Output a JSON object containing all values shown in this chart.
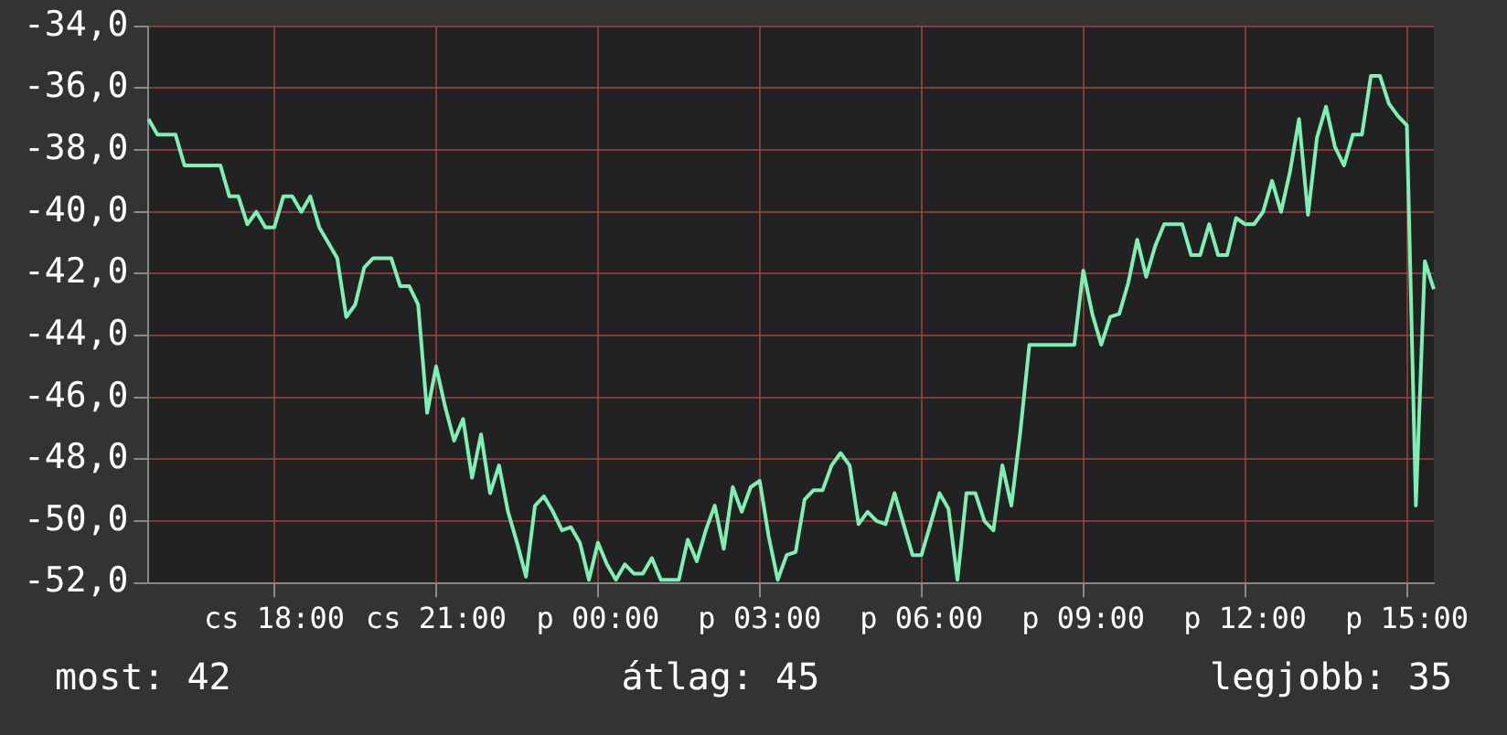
{
  "chart_data": {
    "type": "line",
    "categories": [
      null,
      null,
      null,
      null,
      null,
      null,
      null,
      null,
      null,
      null,
      null,
      null,
      null,
      null,
      "cs 18:00",
      null,
      null,
      null,
      null,
      null,
      null,
      null,
      null,
      null,
      null,
      null,
      null,
      null,
      null,
      null,
      null,
      null,
      "cs 21:00",
      null,
      null,
      null,
      null,
      null,
      null,
      null,
      null,
      null,
      null,
      null,
      null,
      null,
      null,
      null,
      null,
      null,
      "p 00:00",
      null,
      null,
      null,
      null,
      null,
      null,
      null,
      null,
      null,
      null,
      null,
      null,
      null,
      null,
      null,
      null,
      null,
      "p 03:00",
      null,
      null,
      null,
      null,
      null,
      null,
      null,
      null,
      null,
      null,
      null,
      null,
      null,
      null,
      null,
      null,
      null,
      "p 06:00",
      null,
      null,
      null,
      null,
      null,
      null,
      null,
      null,
      null,
      null,
      null,
      null,
      null,
      null,
      null,
      null,
      null,
      "p 09:00",
      null,
      null,
      null,
      null,
      null,
      null,
      null,
      null,
      null,
      null,
      null,
      null,
      null,
      null,
      null,
      null,
      null,
      "p 12:00",
      null,
      null,
      null,
      null,
      null,
      null,
      null,
      null,
      null,
      null,
      null,
      null,
      null,
      null,
      null,
      null,
      null,
      "p 15:00",
      null,
      null,
      null
    ],
    "series": [
      {
        "color": "#7ef0b4",
        "values": [
          -37.0,
          -37.5,
          -37.5,
          -37.5,
          -38.5,
          -38.5,
          -38.5,
          -38.5,
          -38.5,
          -39.5,
          -39.5,
          -40.4,
          -40.0,
          -40.5,
          -40.5,
          -39.5,
          -39.5,
          -40.0,
          -39.5,
          -40.5,
          -41.0,
          -41.5,
          -43.4,
          -43.0,
          -41.8,
          -41.5,
          -41.5,
          -41.5,
          -42.4,
          -42.4,
          -43.0,
          -46.5,
          -45.0,
          -46.3,
          -47.4,
          -46.7,
          -48.6,
          -47.2,
          -49.1,
          -48.2,
          -49.7,
          -50.7,
          -51.8,
          -49.5,
          -49.2,
          -49.7,
          -50.3,
          -50.2,
          -50.7,
          -51.9,
          -50.7,
          -51.4,
          -51.9,
          -51.4,
          -51.7,
          -51.7,
          -51.2,
          -51.9,
          -51.9,
          -51.9,
          -50.6,
          -51.3,
          -50.3,
          -49.5,
          -50.9,
          -48.9,
          -49.7,
          -48.9,
          -48.7,
          -50.5,
          -51.9,
          -51.1,
          -51.0,
          -49.3,
          -49.0,
          -49.0,
          -48.2,
          -47.8,
          -48.2,
          -50.1,
          -49.7,
          -50.0,
          -50.1,
          -49.1,
          -50.1,
          -51.1,
          -51.1,
          -50.1,
          -49.1,
          -49.6,
          -51.9,
          -49.1,
          -49.1,
          -50.0,
          -50.3,
          -48.2,
          -49.5,
          -47.1,
          -44.3,
          -44.3,
          -44.3,
          -44.3,
          -44.3,
          -44.3,
          -41.9,
          -43.3,
          -44.3,
          -43.4,
          -43.3,
          -42.3,
          -40.9,
          -42.1,
          -41.1,
          -40.4,
          -40.4,
          -40.4,
          -41.4,
          -41.4,
          -40.4,
          -41.4,
          -41.4,
          -40.2,
          -40.4,
          -40.4,
          -40.0,
          -39.0,
          -40.0,
          -38.7,
          -37.0,
          -40.1,
          -37.6,
          -36.6,
          -37.9,
          -38.5,
          -37.5,
          -37.5,
          -35.6,
          -35.6,
          -36.5,
          -36.9,
          -37.2,
          -49.5,
          -41.6,
          -42.5
        ]
      }
    ],
    "ylim": [
      -52,
      -34
    ],
    "yticks": [
      {
        "value": -52,
        "label": "-52,0"
      },
      {
        "value": -50,
        "label": "-50,0"
      },
      {
        "value": -48,
        "label": "-48,0"
      },
      {
        "value": -46,
        "label": "-46,0"
      },
      {
        "value": -44,
        "label": "-44,0"
      },
      {
        "value": -42,
        "label": "-42,0"
      },
      {
        "value": -40,
        "label": "-40,0"
      },
      {
        "value": -38,
        "label": "-38,0"
      },
      {
        "value": -36,
        "label": "-36,0"
      },
      {
        "value": -34,
        "label": "-34,0"
      }
    ],
    "grid": true,
    "legend": false,
    "marker": "none",
    "line_style": "solid",
    "annotations": [
      "most: 42",
      "átlag: 45",
      "legjobb: 35"
    ]
  }
}
